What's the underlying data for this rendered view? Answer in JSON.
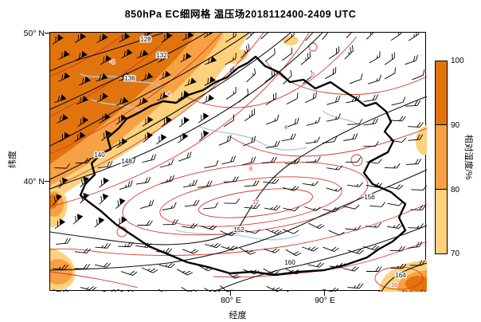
{
  "title": "850hPa EC细网格 温压场2018112400-2409 UTC",
  "axes": {
    "y_label": "纬度",
    "x_label": "经度",
    "y_ticks": [
      "50° N",
      "40° N"
    ],
    "x_ticks": [
      "80° E",
      "90° E"
    ]
  },
  "colorbar": {
    "label": "相对湿度/%",
    "ticks": [
      "100",
      "90",
      "80",
      "70"
    ],
    "segment_colors": [
      "#e2740e",
      "#f6a244",
      "#fdd17e"
    ]
  },
  "contour_labels": {
    "height": [
      "128",
      "132",
      "136",
      "140",
      "148",
      "152",
      "156",
      "160",
      "164"
    ],
    "temperature": [
      "-8",
      "-4",
      "0",
      "4",
      "8",
      "12",
      "16"
    ]
  },
  "chart_data": {
    "type": "heatmap",
    "title": "850hPa EC细网格 温压场2018112400-2409 UTC",
    "xlabel": "经度",
    "ylabel": "纬度",
    "x_tick_labels": [
      "80° E",
      "90° E"
    ],
    "y_tick_labels": [
      "50° N",
      "40° N"
    ],
    "colorbar": {
      "label": "相对湿度/%",
      "tick_values": [
        100,
        90,
        80,
        70
      ],
      "segment_colors_top_to_bottom": [
        "#e2740e",
        "#f6a244",
        "#fdd17e"
      ],
      "shading_meaning": "relative humidity >= 70% shaded orange, darker = higher RH"
    },
    "layers": {
      "black_contours": {
        "field": "geopotential height (dagpm)",
        "labeled_levels": [
          128,
          132,
          136,
          140,
          148,
          152,
          156,
          160,
          164
        ],
        "interval": 4
      },
      "red_contours": {
        "field": "temperature (°C)",
        "labeled_levels": [
          -8,
          -4,
          0,
          4,
          8,
          12,
          16
        ]
      },
      "wind_barbs": "wind barbs plotted on a regular grid; strongest (pennant) barbs over the moist northwest corner",
      "thick_outline": "Xinjiang province boundary"
    },
    "pattern_summary": "Low heights (128-140) with 90-100% RH and strong flow over the NW corner; dry basin in the center ringed by 148-164 contours increasing toward the SE; moist patches on the west edge and SE corner."
  }
}
